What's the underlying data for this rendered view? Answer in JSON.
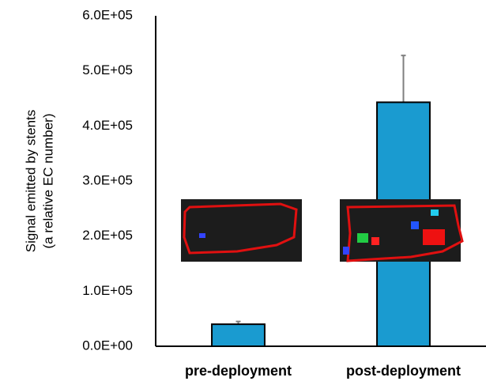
{
  "chart_data": {
    "type": "bar",
    "ylabel": [
      "Signal emitted by stents",
      "(a relative EC number)"
    ],
    "categories": [
      "pre-deployment",
      "post-deployment"
    ],
    "values": [
      40000,
      443000
    ],
    "errors": [
      5000,
      85000
    ],
    "color": "#1a9bd0",
    "ylim": [
      0,
      600000
    ],
    "yticks": [
      {
        "value": 0,
        "label": "0.0E+00"
      },
      {
        "value": 100000,
        "label": "1.0E+05"
      },
      {
        "value": 200000,
        "label": "2.0E+05"
      },
      {
        "value": 300000,
        "label": "3.0E+05"
      },
      {
        "value": 400000,
        "label": "4.0E+05"
      },
      {
        "value": 500000,
        "label": "5.0E+05"
      },
      {
        "value": 600000,
        "label": "6.0E+05"
      }
    ],
    "grid": false
  }
}
